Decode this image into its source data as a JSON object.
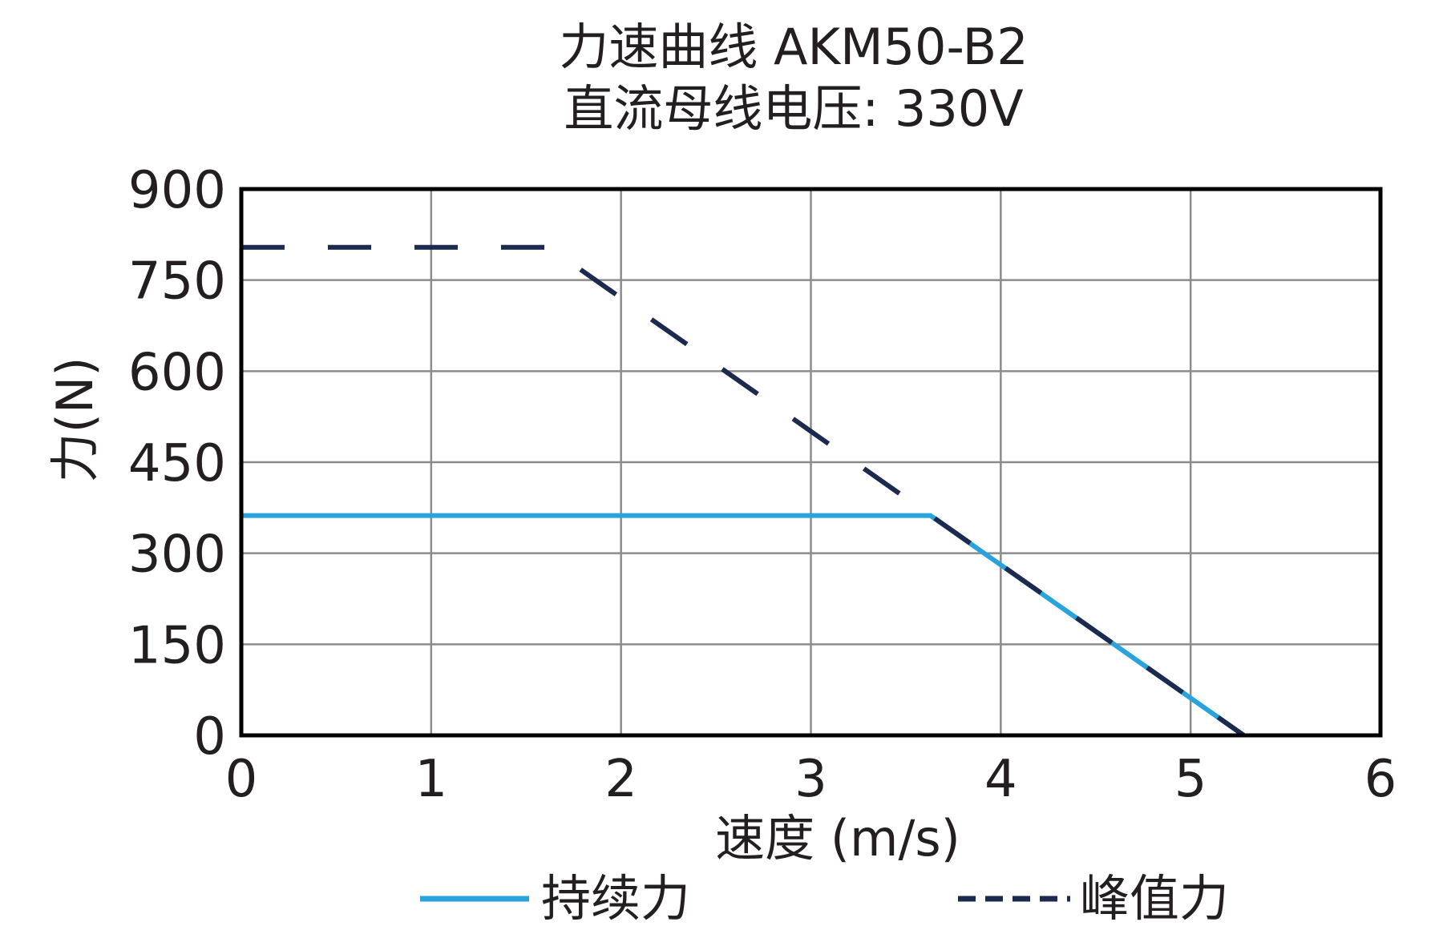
{
  "chart_data": {
    "type": "line",
    "title": "力速曲线 AKM50-B2",
    "subtitle": "直流母线电压: 330V",
    "xlabel": "速度 (m/s)",
    "ylabel": "力(N)",
    "xlim": [
      0,
      6
    ],
    "ylim": [
      0,
      900
    ],
    "x_ticks": [
      "0",
      "1",
      "2",
      "3",
      "4",
      "5",
      "6"
    ],
    "y_ticks": [
      "0",
      "150",
      "300",
      "450",
      "600",
      "750",
      "900"
    ],
    "grid": true,
    "legend_position": "bottom",
    "series": [
      {
        "name": "持续力",
        "color": "#29a3dc",
        "style": "solid",
        "points": [
          [
            0,
            362
          ],
          [
            3.63,
            362
          ],
          [
            5.28,
            0
          ]
        ]
      },
      {
        "name": "峰值力",
        "color": "#1b2a4e",
        "style": "dashed",
        "points": [
          [
            0,
            804
          ],
          [
            1.62,
            804
          ],
          [
            5.28,
            0
          ]
        ]
      }
    ]
  }
}
